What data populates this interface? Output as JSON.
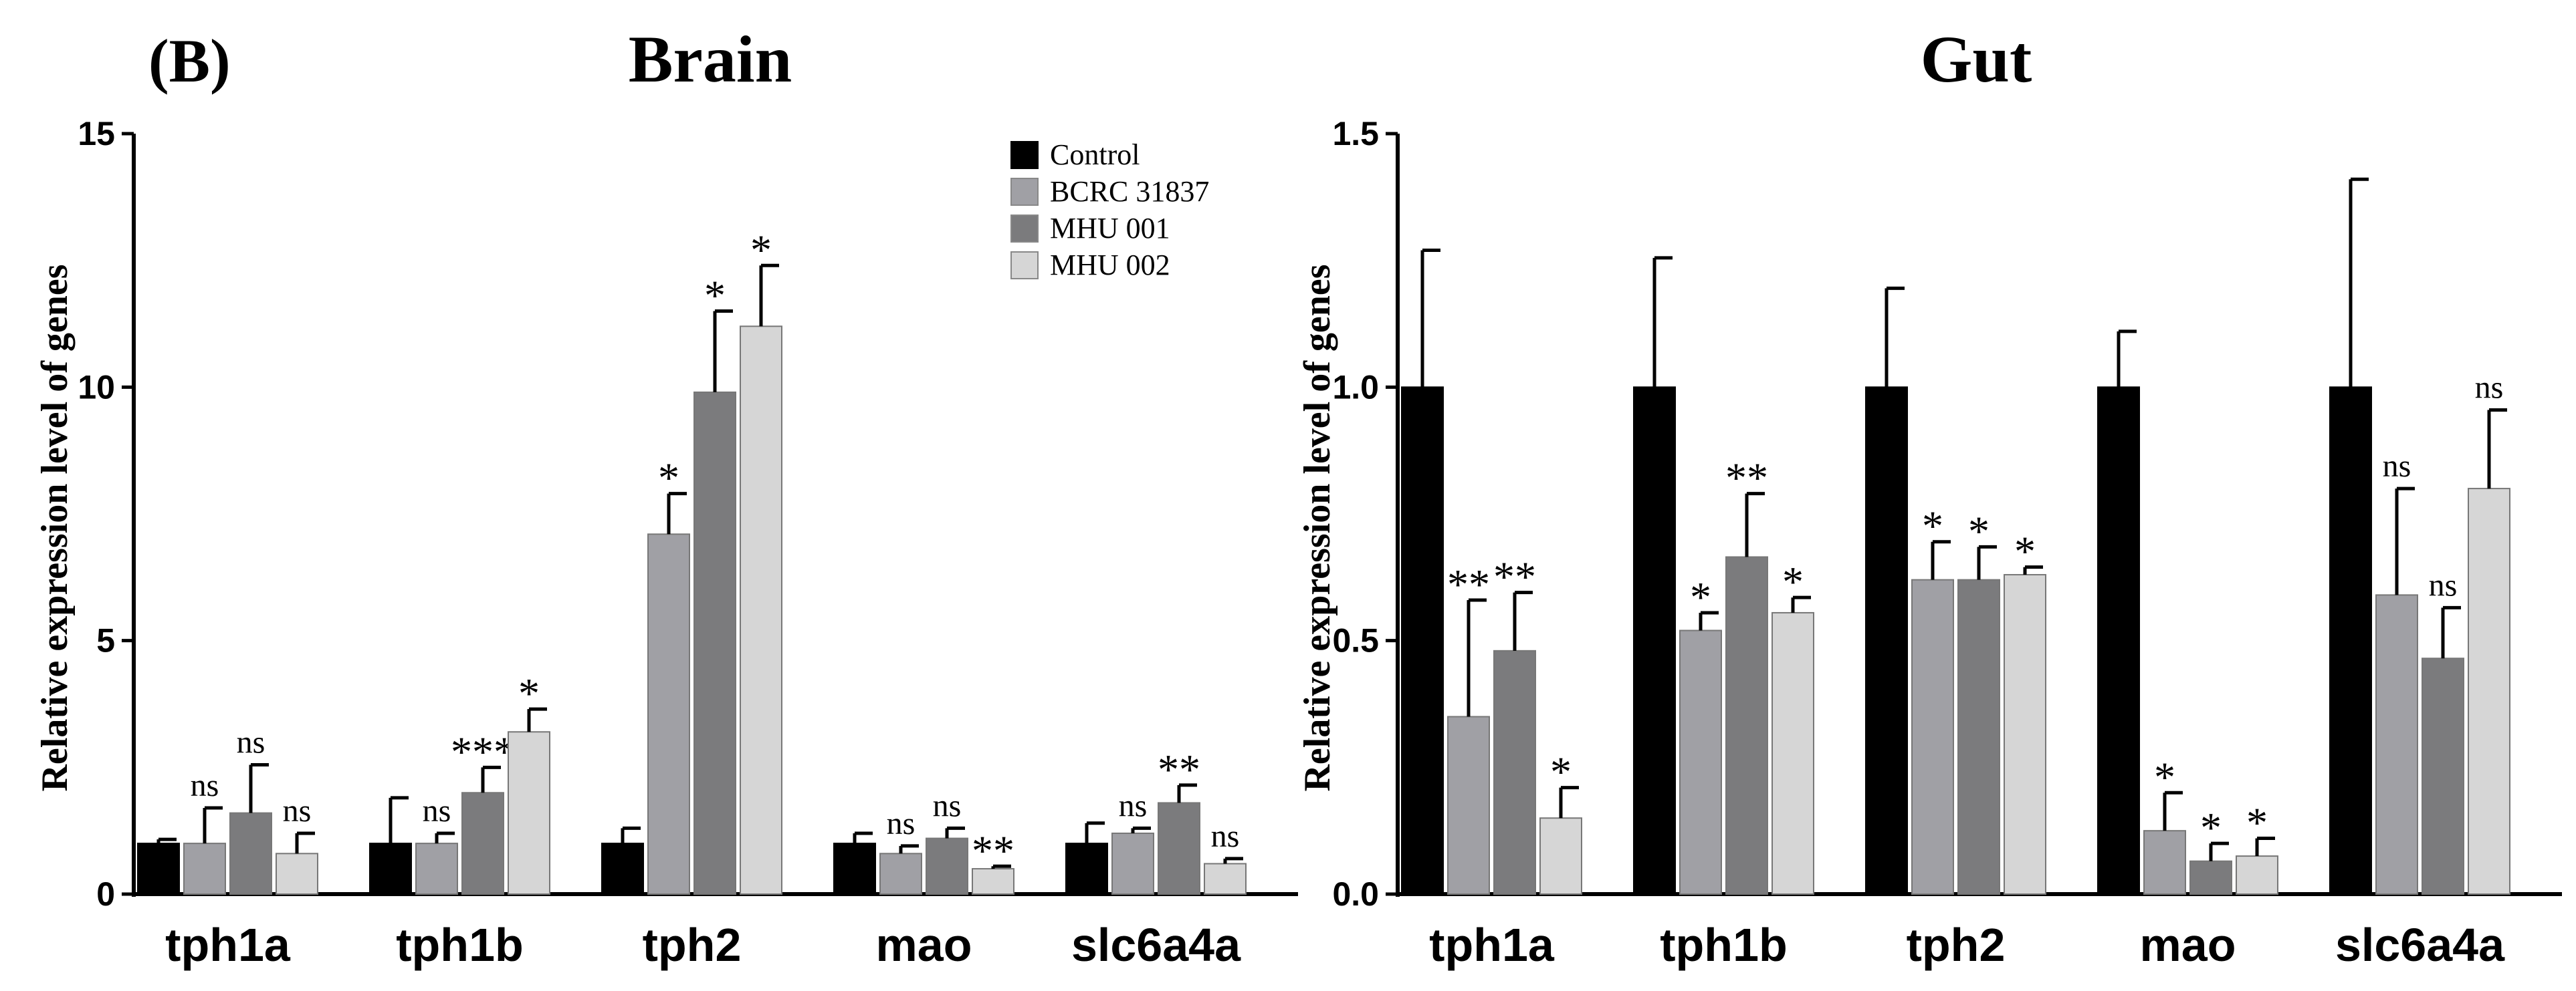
{
  "panel_label": "(B)",
  "legend": [
    {
      "name": "Control",
      "color": "#000000"
    },
    {
      "name": "BCRC 31837",
      "color": "#a0a0a5"
    },
    {
      "name": "MHU 001",
      "color": "#7b7b7d"
    },
    {
      "name": "MHU 002",
      "color": "#d6d6d6"
    }
  ],
  "chart_data": [
    {
      "type": "bar",
      "title": "Brain",
      "ylabel": "Relative expression level of genes",
      "xlabel": "",
      "ylim": [
        0,
        15
      ],
      "yticks": [
        0,
        5,
        10,
        15
      ],
      "ytick_labels": [
        "0",
        "5",
        "10",
        "15"
      ],
      "categories": [
        "tph1a",
        "tph1b",
        "tph2",
        "mao",
        "slc6a4a"
      ],
      "series": [
        {
          "name": "Control",
          "values": [
            1.0,
            1.0,
            1.0,
            1.0,
            1.0
          ],
          "errors": [
            0.08,
            0.9,
            0.3,
            0.2,
            0.4
          ],
          "sig": [
            "",
            "",
            "",
            "",
            ""
          ]
        },
        {
          "name": "BCRC 31837",
          "values": [
            1.0,
            1.0,
            7.1,
            0.8,
            1.2
          ],
          "errors": [
            0.7,
            0.2,
            0.8,
            0.15,
            0.1
          ],
          "sig": [
            "ns",
            "ns",
            "*",
            "ns",
            "ns"
          ]
        },
        {
          "name": "MHU 001",
          "values": [
            1.6,
            2.0,
            9.9,
            1.1,
            1.8
          ],
          "errors": [
            0.95,
            0.5,
            1.6,
            0.2,
            0.35
          ],
          "sig": [
            "ns",
            "***",
            "*",
            "ns",
            "**"
          ]
        },
        {
          "name": "MHU 002",
          "values": [
            0.8,
            3.2,
            11.2,
            0.5,
            0.6
          ],
          "errors": [
            0.4,
            0.45,
            1.2,
            0.05,
            0.1
          ],
          "sig": [
            "ns",
            "*",
            "*",
            "**",
            "ns"
          ]
        }
      ]
    },
    {
      "type": "bar",
      "title": "Gut",
      "ylabel": "Relative expression level of genes",
      "xlabel": "",
      "ylim": [
        0,
        1.5
      ],
      "yticks": [
        0,
        0.5,
        1.0,
        1.5
      ],
      "ytick_labels": [
        "0.0",
        "0.5",
        "1.0",
        "1.5"
      ],
      "categories": [
        "tph1a",
        "tph1b",
        "tph2",
        "mao",
        "slc6a4a"
      ],
      "series": [
        {
          "name": "Control",
          "values": [
            1.0,
            1.0,
            1.0,
            1.0,
            1.0
          ],
          "errors": [
            0.27,
            0.255,
            0.195,
            0.11,
            0.41
          ],
          "sig": [
            "",
            "",
            "",
            "",
            ""
          ]
        },
        {
          "name": "BCRC 31837",
          "values": [
            0.35,
            0.52,
            0.62,
            0.125,
            0.59
          ],
          "errors": [
            0.23,
            0.035,
            0.075,
            0.075,
            0.21
          ],
          "sig": [
            "**",
            "*",
            "*",
            "*",
            "ns"
          ]
        },
        {
          "name": "MHU 001",
          "values": [
            0.48,
            0.665,
            0.62,
            0.065,
            0.465
          ],
          "errors": [
            0.115,
            0.125,
            0.065,
            0.035,
            0.1
          ],
          "sig": [
            "**",
            "**",
            "*",
            "*",
            "ns"
          ]
        },
        {
          "name": "MHU 002",
          "values": [
            0.15,
            0.555,
            0.63,
            0.075,
            0.8
          ],
          "errors": [
            0.06,
            0.03,
            0.015,
            0.035,
            0.155
          ],
          "sig": [
            "*",
            "*",
            "*",
            "*",
            "ns"
          ]
        }
      ]
    }
  ]
}
